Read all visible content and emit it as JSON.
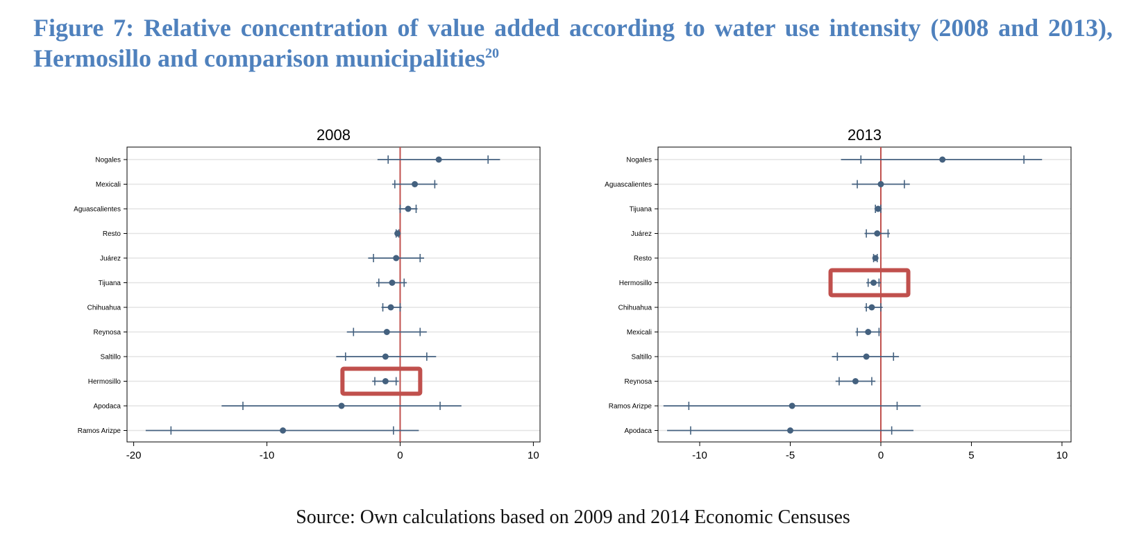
{
  "figure": {
    "title_main": "Figure 7: Relative concentration of value added according to water use intensity (2008 and 2013), Hermosillo and comparison municipalities",
    "title_footnote": "20",
    "source": "Source: Own calculations based on 2009 and 2014 Economic Censuses"
  },
  "colors": {
    "series": "#44617f",
    "zero_line": "#c0504d",
    "highlight": "#c0504d",
    "title": "#4f81bd"
  },
  "chart_data": [
    {
      "type": "scatter",
      "title": "2008",
      "xlim": [
        -20.5,
        10.5
      ],
      "xticks": [
        -20,
        -10,
        0,
        10
      ],
      "grid": true,
      "highlight": "Hermosillo",
      "categories": [
        "Nogales",
        "Mexicali",
        "Aguascalientes",
        "Resto",
        "Juárez",
        "Tijuana",
        "Chihuahua",
        "Reynosa",
        "Saltillo",
        "Hermosillo",
        "Apodaca",
        "Ramos Arizpe"
      ],
      "points": [
        {
          "label": "Nogales",
          "x": 2.9,
          "inner": [
            -0.9,
            6.6
          ],
          "outer": [
            -1.7,
            7.5
          ]
        },
        {
          "label": "Mexicali",
          "x": 1.1,
          "inner": [
            -0.4,
            2.6
          ],
          "outer": [
            -0.6,
            2.8
          ]
        },
        {
          "label": "Aguascalientes",
          "x": 0.6,
          "inner": [
            0.0,
            1.2
          ],
          "outer": [
            -0.1,
            1.3
          ]
        },
        {
          "label": "Resto",
          "x": -0.2,
          "inner": [
            -0.3,
            -0.1
          ],
          "outer": [
            -0.35,
            -0.05
          ]
        },
        {
          "label": "Juárez",
          "x": -0.3,
          "inner": [
            -2.0,
            1.5
          ],
          "outer": [
            -2.4,
            1.8
          ]
        },
        {
          "label": "Tijuana",
          "x": -0.6,
          "inner": [
            -1.6,
            0.3
          ],
          "outer": [
            -1.8,
            0.5
          ]
        },
        {
          "label": "Chihuahua",
          "x": -0.7,
          "inner": [
            -1.3,
            0.0
          ],
          "outer": [
            -1.4,
            0.1
          ]
        },
        {
          "label": "Reynosa",
          "x": -1.0,
          "inner": [
            -3.5,
            1.5
          ],
          "outer": [
            -4.0,
            2.0
          ]
        },
        {
          "label": "Saltillo",
          "x": -1.1,
          "inner": [
            -4.1,
            2.0
          ],
          "outer": [
            -4.8,
            2.7
          ]
        },
        {
          "label": "Hermosillo",
          "x": -1.1,
          "inner": [
            -1.9,
            -0.3
          ],
          "outer": [
            -2.1,
            -0.1
          ]
        },
        {
          "label": "Apodaca",
          "x": -4.4,
          "inner": [
            -11.8,
            3.0
          ],
          "outer": [
            -13.4,
            4.6
          ]
        },
        {
          "label": "Ramos Arizpe",
          "x": -8.8,
          "inner": [
            -17.2,
            -0.5
          ],
          "outer": [
            -19.1,
            1.4
          ]
        }
      ]
    },
    {
      "type": "scatter",
      "title": "2013",
      "xlim": [
        -12.3,
        10.5
      ],
      "xticks": [
        -10,
        -5,
        0,
        5,
        10
      ],
      "grid": true,
      "highlight": "Hermosillo",
      "categories": [
        "Nogales",
        "Aguascalientes",
        "Tijuana",
        "Juárez",
        "Resto",
        "Hermosillo",
        "Chihuahua",
        "Mexicali",
        "Saltillo",
        "Reynosa",
        "Ramos Arizpe",
        "Apodaca"
      ],
      "points": [
        {
          "label": "Nogales",
          "x": 3.4,
          "inner": [
            -1.1,
            7.9
          ],
          "outer": [
            -2.2,
            8.9
          ]
        },
        {
          "label": "Aguascalientes",
          "x": 0.0,
          "inner": [
            -1.3,
            1.3
          ],
          "outer": [
            -1.6,
            1.6
          ]
        },
        {
          "label": "Tijuana",
          "x": -0.15,
          "inner": [
            -0.3,
            0.0
          ],
          "outer": [
            -0.35,
            0.05
          ]
        },
        {
          "label": "Juárez",
          "x": -0.2,
          "inner": [
            -0.8,
            0.4
          ],
          "outer": [
            -0.9,
            0.5
          ]
        },
        {
          "label": "Resto",
          "x": -0.3,
          "inner": [
            -0.4,
            -0.2
          ],
          "outer": [
            -0.45,
            -0.15
          ]
        },
        {
          "label": "Hermosillo",
          "x": -0.4,
          "inner": [
            -0.7,
            -0.1
          ],
          "outer": [
            -0.8,
            0.0
          ]
        },
        {
          "label": "Chihuahua",
          "x": -0.5,
          "inner": [
            -0.8,
            0.0
          ],
          "outer": [
            -0.9,
            0.1
          ]
        },
        {
          "label": "Mexicali",
          "x": -0.7,
          "inner": [
            -1.3,
            -0.1
          ],
          "outer": [
            -1.4,
            0.0
          ]
        },
        {
          "label": "Saltillo",
          "x": -0.8,
          "inner": [
            -2.4,
            0.7
          ],
          "outer": [
            -2.7,
            1.0
          ]
        },
        {
          "label": "Reynosa",
          "x": -1.4,
          "inner": [
            -2.3,
            -0.5
          ],
          "outer": [
            -2.5,
            -0.3
          ]
        },
        {
          "label": "Ramos Arizpe",
          "x": -4.9,
          "inner": [
            -10.6,
            0.9
          ],
          "outer": [
            -12.0,
            2.2
          ]
        },
        {
          "label": "Apodaca",
          "x": -5.0,
          "inner": [
            -10.5,
            0.6
          ],
          "outer": [
            -11.8,
            1.8
          ]
        }
      ]
    }
  ]
}
